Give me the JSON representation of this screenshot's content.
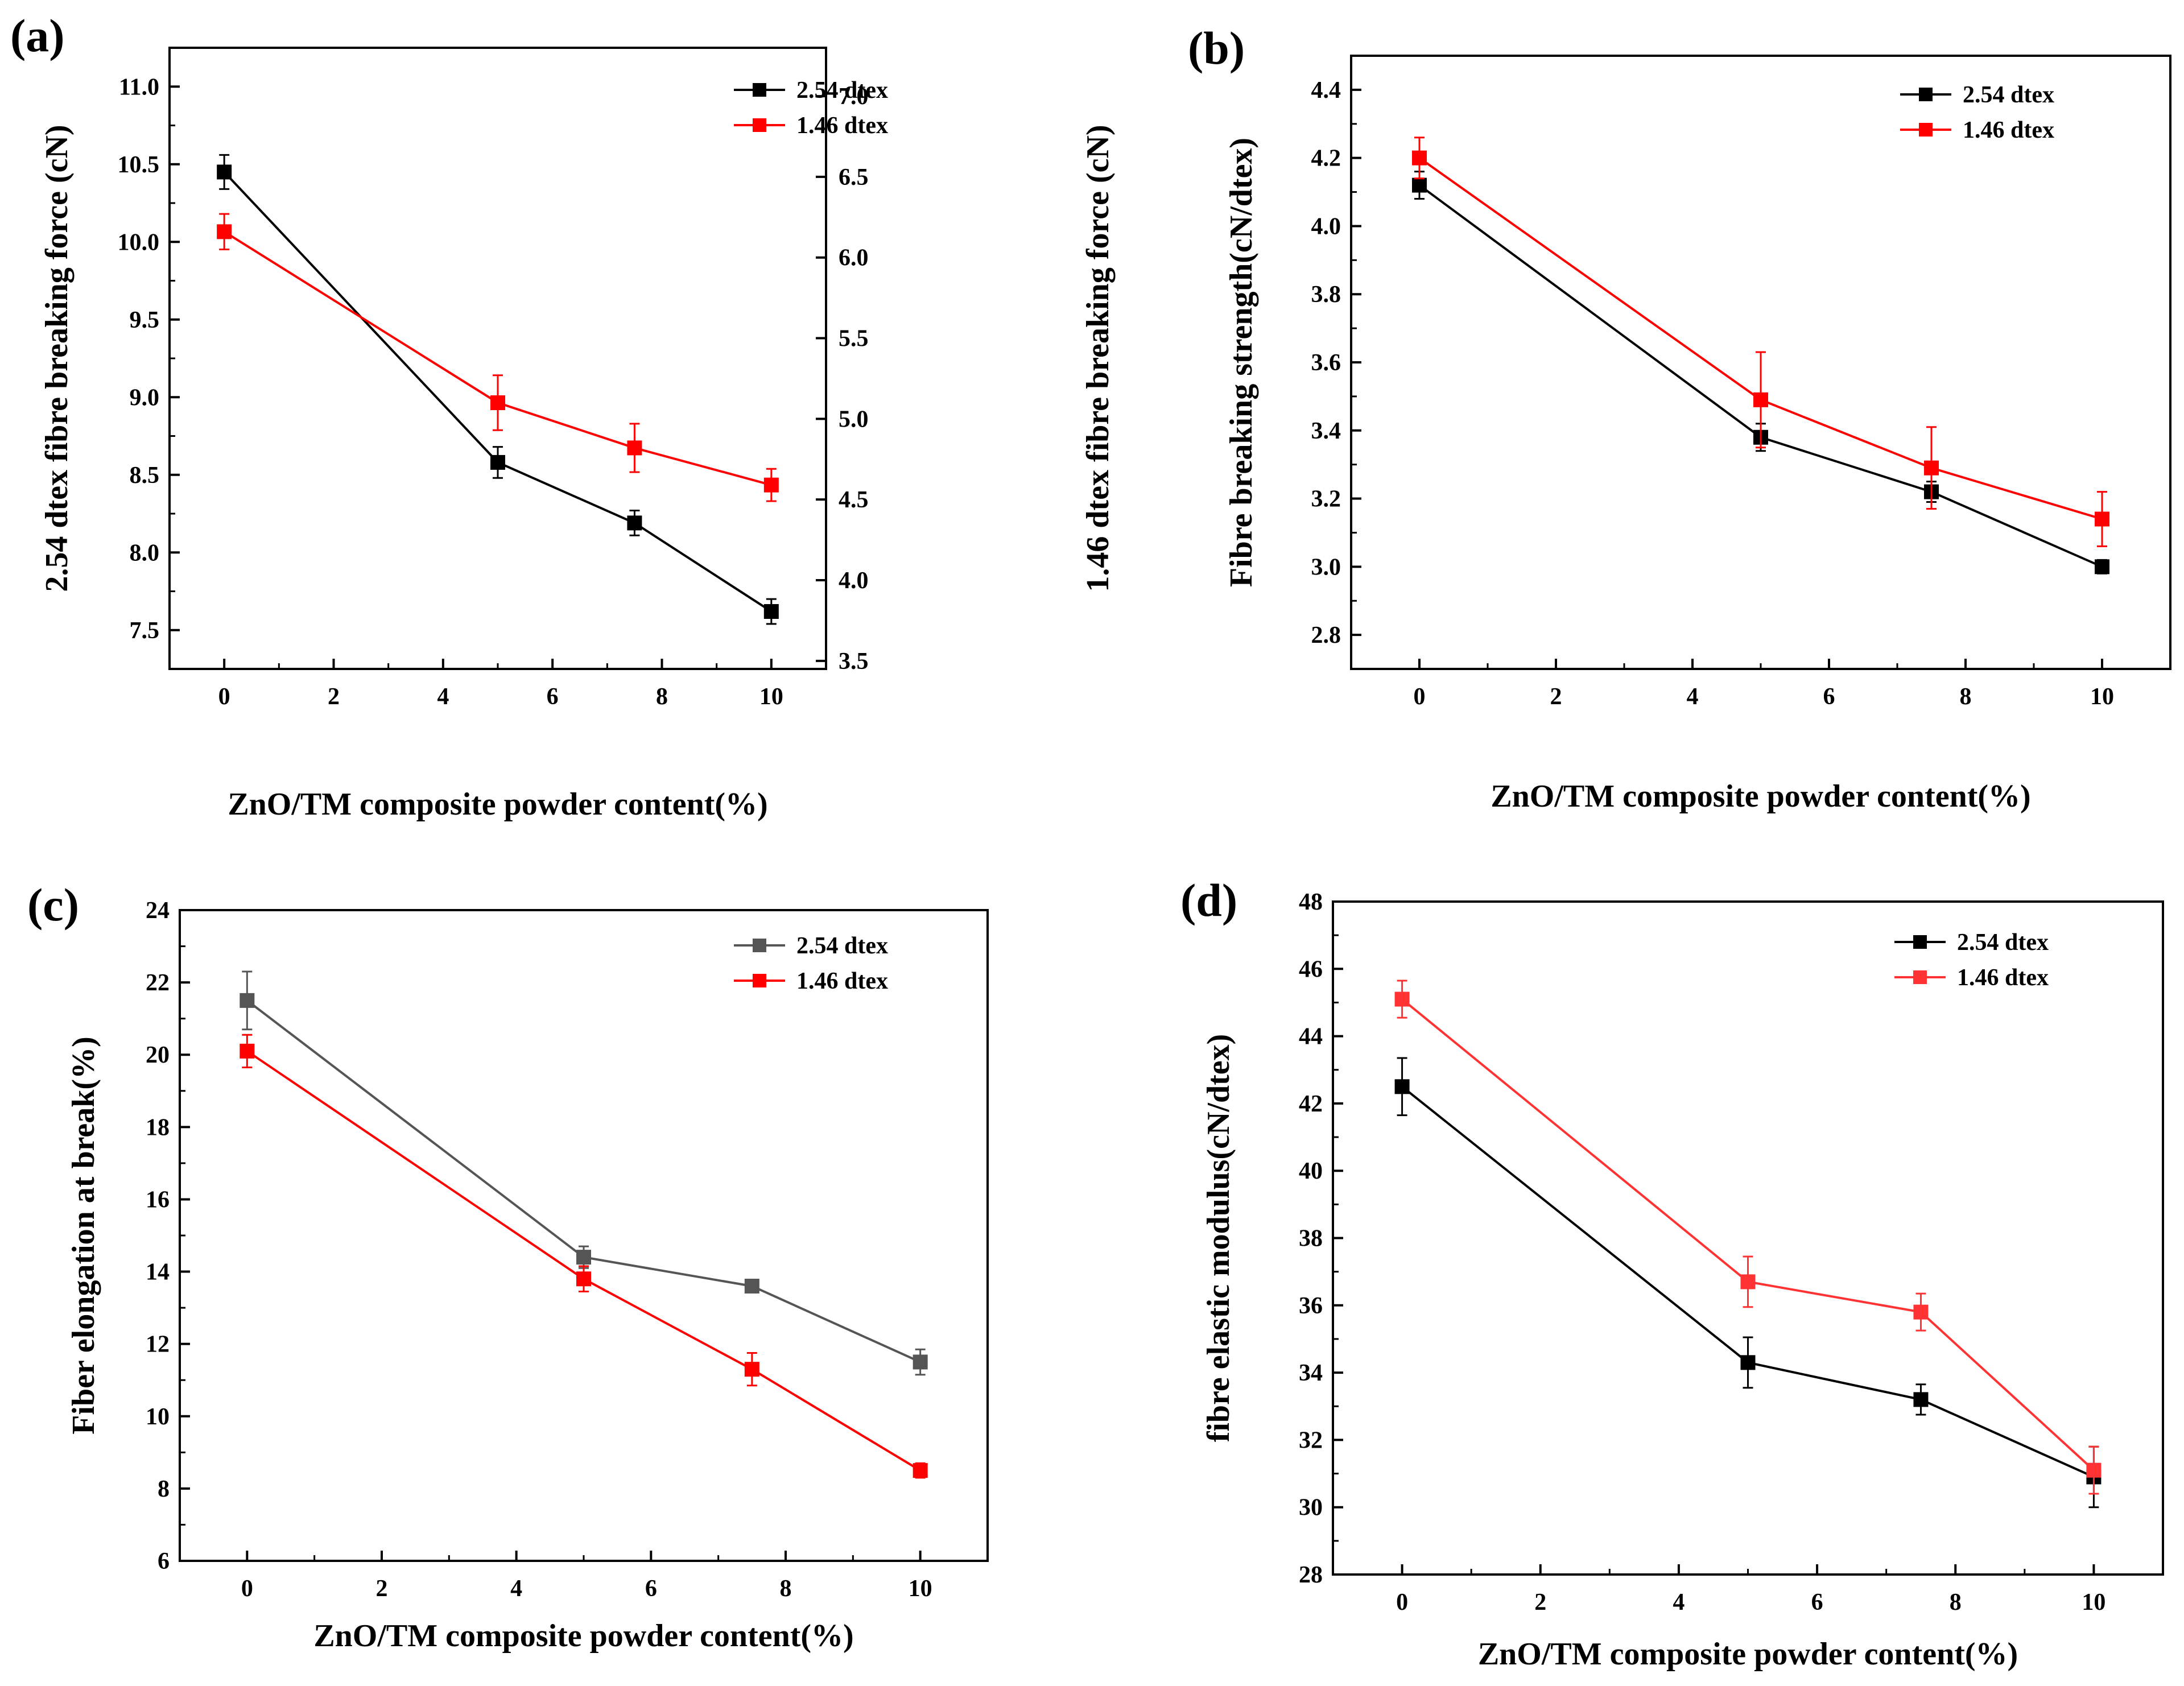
{
  "chart_data": [
    {
      "panel": "(a)",
      "type": "line",
      "xlabel": "ZnO/TM composite powder content(%)",
      "ylabel": "2.54 dtex fibre breaking force (cN)",
      "y2label": "1.46 dtex fibre breaking force (cN)",
      "xlim": [
        -1,
        11
      ],
      "ylim": [
        7.25,
        11.25
      ],
      "y2lim": [
        3.45,
        7.3
      ],
      "xticks": [
        0,
        2,
        4,
        6,
        8,
        10
      ],
      "yticks": [
        7.5,
        8.0,
        8.5,
        9.0,
        9.5,
        10.0,
        10.5,
        11.0
      ],
      "y2ticks": [
        3.5,
        4.0,
        4.5,
        5.0,
        5.5,
        6.0,
        6.5,
        7.0
      ],
      "tick_decimals": 1,
      "legend": "top-right",
      "series": [
        {
          "name": "2.54 dtex",
          "color": "#000000",
          "axis": "left",
          "x": [
            0,
            5,
            7.5,
            10
          ],
          "y": [
            10.45,
            8.58,
            8.19,
            7.62
          ],
          "err": [
            0.11,
            0.1,
            0.08,
            0.08
          ]
        },
        {
          "name": "1.46 dtex",
          "color": "#ff0000",
          "axis": "right",
          "x": [
            0,
            5,
            7.5,
            10
          ],
          "y": [
            6.16,
            5.1,
            4.82,
            4.59
          ],
          "err": [
            0.11,
            0.17,
            0.15,
            0.1
          ]
        }
      ]
    },
    {
      "panel": "(b)",
      "type": "line",
      "xlabel": "ZnO/TM composite powder content(%)",
      "ylabel": "Fibre breaking strength(cN/dtex)",
      "xlim": [
        -1,
        11
      ],
      "ylim": [
        2.7,
        4.5
      ],
      "xticks": [
        0,
        2,
        4,
        6,
        8,
        10
      ],
      "yticks": [
        2.8,
        3.0,
        3.2,
        3.4,
        3.6,
        3.8,
        4.0,
        4.2,
        4.4
      ],
      "tick_decimals": 1,
      "legend": "top-right",
      "series": [
        {
          "name": "2.54 dtex",
          "color": "#000000",
          "axis": "left",
          "x": [
            0,
            5,
            7.5,
            10
          ],
          "y": [
            4.12,
            3.38,
            3.22,
            3.0
          ],
          "err": [
            0.04,
            0.04,
            0.03,
            0.02
          ]
        },
        {
          "name": "1.46 dtex",
          "color": "#ff0000",
          "axis": "left",
          "x": [
            0,
            5,
            7.5,
            10
          ],
          "y": [
            4.2,
            3.49,
            3.29,
            3.14
          ],
          "err": [
            0.06,
            0.14,
            0.12,
            0.08
          ]
        }
      ]
    },
    {
      "panel": "(c)",
      "type": "line",
      "xlabel": "ZnO/TM composite powder content(%)",
      "ylabel": "Fiber elongation at break(%)",
      "xlim": [
        -1,
        11
      ],
      "ylim": [
        6,
        24
      ],
      "xticks": [
        0,
        2,
        4,
        6,
        8,
        10
      ],
      "yticks": [
        6,
        8,
        10,
        12,
        14,
        16,
        18,
        20,
        22,
        24
      ],
      "tick_decimals": 0,
      "legend": "top-right",
      "series": [
        {
          "name": "2.54 dtex",
          "color": "#555555",
          "axis": "left",
          "x": [
            0,
            5,
            7.5,
            10
          ],
          "y": [
            21.5,
            14.4,
            13.6,
            11.5
          ],
          "err": [
            0.8,
            0.3,
            0.15,
            0.35
          ]
        },
        {
          "name": "1.46 dtex",
          "color": "#ff0000",
          "axis": "left",
          "x": [
            0,
            5,
            7.5,
            10
          ],
          "y": [
            20.1,
            13.8,
            11.3,
            8.5
          ],
          "err": [
            0.45,
            0.35,
            0.45,
            0.2
          ]
        }
      ]
    },
    {
      "panel": "(d)",
      "type": "line",
      "xlabel": "ZnO/TM composite powder content(%)",
      "ylabel": "fibre elastic modulus(cN/dtex)",
      "xlim": [
        -1,
        11
      ],
      "ylim": [
        28,
        48
      ],
      "xticks": [
        0,
        2,
        4,
        6,
        8,
        10
      ],
      "yticks": [
        28,
        30,
        32,
        34,
        36,
        38,
        40,
        42,
        44,
        46,
        48
      ],
      "tick_decimals": 0,
      "legend": "top-right",
      "series": [
        {
          "name": "2.54 dtex",
          "color": "#000000",
          "axis": "left",
          "x": [
            0,
            5,
            7.5,
            10
          ],
          "y": [
            42.5,
            34.3,
            33.2,
            30.9
          ],
          "err": [
            0.85,
            0.75,
            0.45,
            0.9
          ]
        },
        {
          "name": "1.46 dtex",
          "color": "#ff3333",
          "axis": "left",
          "x": [
            0,
            5,
            7.5,
            10
          ],
          "y": [
            45.1,
            36.7,
            35.8,
            31.1
          ],
          "err": [
            0.55,
            0.75,
            0.55,
            0.7
          ]
        }
      ]
    }
  ]
}
